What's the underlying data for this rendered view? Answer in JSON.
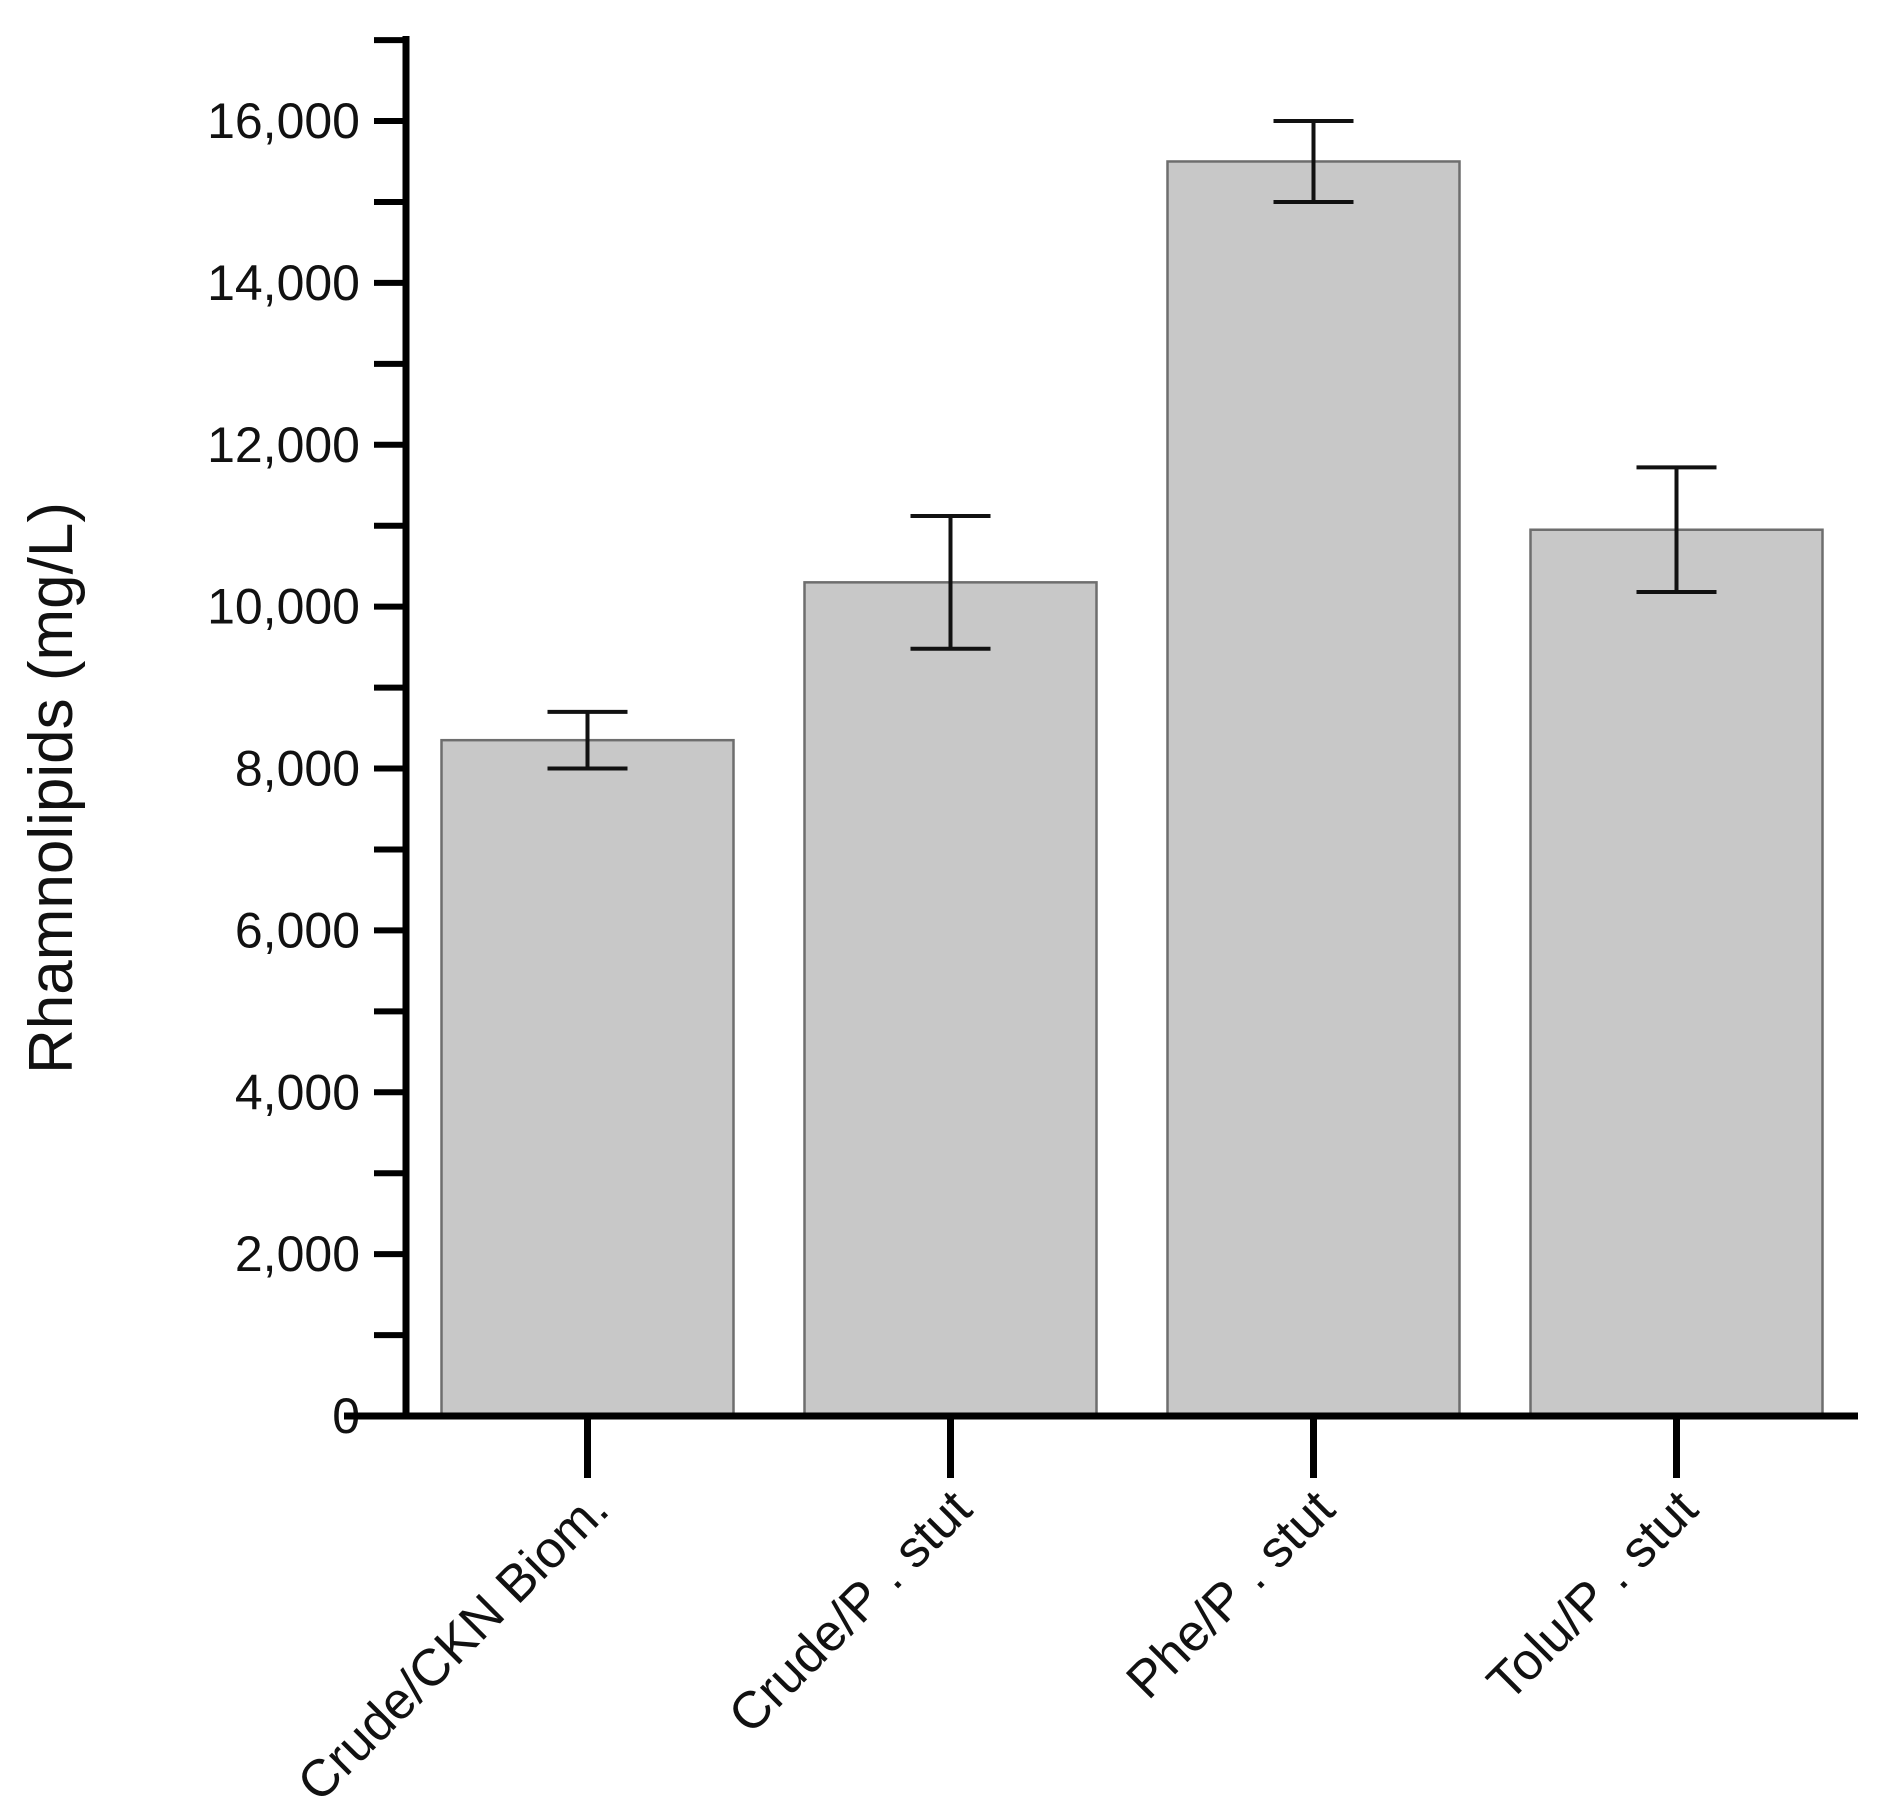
{
  "chart_data": {
    "type": "bar",
    "title": "",
    "xlabel": "",
    "ylabel": "Rhamnolipids (mg/L)",
    "categories": [
      "Crude/CKN Biom.",
      "Crude/P . stut",
      "Phe/P . stut",
      "Tolu/P . stut"
    ],
    "values": [
      8350,
      10300,
      15500,
      10950
    ],
    "error": [
      350,
      820,
      500,
      770
    ],
    "ylim": [
      0,
      17000
    ],
    "yticks": [
      0,
      2000,
      4000,
      6000,
      8000,
      10000,
      12000,
      14000,
      16000
    ],
    "ytick_labels": [
      "0",
      "2,000",
      "4,000",
      "6,000",
      "8,000",
      "10,000",
      "12,000",
      "14,000",
      "16,000"
    ],
    "minor_ytick_step": 1000,
    "grid": false,
    "legend": "none",
    "colors": {
      "bar_fill": "#c8c8c8",
      "bar_stroke": "#6e6e6e",
      "axis": "#000000"
    }
  }
}
